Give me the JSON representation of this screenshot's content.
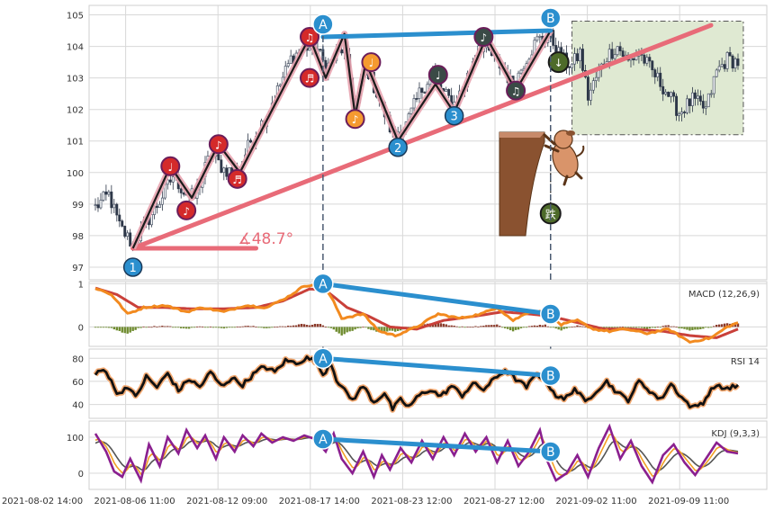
{
  "chart_data": {
    "type": "candlestick",
    "x_ticks": [
      "2021-08-02 14:00",
      "2021-08-06 11:00",
      "2021-08-12 09:00",
      "2021-08-17 14:00",
      "2021-08-23 12:00",
      "2021-08-27 12:00",
      "2021-09-02 11:00",
      "2021-09-09 11:00"
    ],
    "price": {
      "y_ticks": [
        97,
        98,
        99,
        100,
        101,
        102,
        103,
        104,
        105
      ],
      "ylim": [
        96.6,
        105.3
      ],
      "anchors": [
        [
          0,
          98.9
        ],
        [
          5,
          99.3
        ],
        [
          9,
          98.3
        ],
        [
          14,
          97.7
        ],
        [
          19,
          98.4
        ],
        [
          24,
          99.1
        ],
        [
          29,
          99.9
        ],
        [
          33,
          99.4
        ],
        [
          37,
          99.2
        ],
        [
          43,
          100.6
        ],
        [
          48,
          100.1
        ],
        [
          53,
          100.0
        ],
        [
          58,
          101.0
        ],
        [
          63,
          101.7
        ],
        [
          68,
          102.6
        ],
        [
          73,
          103.6
        ],
        [
          78,
          104.0
        ],
        [
          83,
          103.9
        ],
        [
          86,
          103.3
        ],
        [
          89,
          103.6
        ],
        [
          93,
          104.0
        ],
        [
          97,
          102.0
        ],
        [
          101,
          103.4
        ],
        [
          106,
          102.3
        ],
        [
          111,
          101.2
        ],
        [
          116,
          101.5
        ],
        [
          121,
          102.5
        ],
        [
          126,
          103.2
        ],
        [
          130,
          102.5
        ],
        [
          134,
          102.2
        ],
        [
          138,
          102.8
        ],
        [
          143,
          104.1
        ],
        [
          148,
          103.7
        ],
        [
          153,
          103.2
        ],
        [
          156,
          102.7
        ],
        [
          160,
          103.5
        ],
        [
          165,
          104.2
        ],
        [
          170,
          104.3
        ],
        [
          174,
          103.6
        ],
        [
          178,
          103.4
        ],
        [
          181,
          103.8
        ],
        [
          184,
          102.4
        ],
        [
          187,
          103.0
        ],
        [
          191,
          103.7
        ],
        [
          195,
          104.0
        ],
        [
          199,
          103.5
        ],
        [
          203,
          103.8
        ],
        [
          208,
          103.2
        ],
        [
          213,
          102.6
        ],
        [
          218,
          101.9
        ],
        [
          223,
          102.3
        ],
        [
          228,
          102.0
        ],
        [
          232,
          103.2
        ],
        [
          236,
          103.6
        ],
        [
          240,
          103.5
        ]
      ],
      "range_box": {
        "x": [
          178,
          242
        ],
        "y": [
          101.2,
          104.8
        ]
      },
      "trendline": {
        "from": [
          14,
          97.6
        ],
        "to": [
          240,
          105.0
        ]
      },
      "base_line": {
        "from": [
          14,
          97.6
        ],
        "to": [
          60,
          97.6
        ]
      },
      "angle_label": "∡48.7°",
      "pattern_path": [
        [
          14,
          97.6
        ],
        [
          28,
          100.2
        ],
        [
          36,
          99.2
        ],
        [
          46,
          100.9
        ],
        [
          54,
          100.0
        ],
        [
          80,
          104.3
        ],
        [
          86,
          103.0
        ],
        [
          93,
          104.4
        ],
        [
          97,
          101.8
        ],
        [
          101,
          103.5
        ],
        [
          113,
          101.0
        ],
        [
          127,
          102.8
        ],
        [
          134,
          101.9
        ],
        [
          146,
          104.3
        ],
        [
          157,
          102.6
        ],
        [
          170,
          104.5
        ]
      ],
      "points": [
        {
          "label": "1",
          "x": 14,
          "y": 97.0,
          "kind": "num"
        },
        {
          "label": "2",
          "x": 113,
          "y": 100.8,
          "kind": "num"
        },
        {
          "label": "3",
          "x": 134,
          "y": 101.8,
          "kind": "num"
        },
        {
          "label": "A",
          "x": 85,
          "y": 104.7,
          "kind": "AB"
        },
        {
          "label": "B",
          "x": 170,
          "y": 104.9,
          "kind": "AB"
        }
      ],
      "notes": [
        {
          "x": 28,
          "y": 100.2,
          "glyph": "♩",
          "color": "#d42a2a"
        },
        {
          "x": 34,
          "y": 98.8,
          "glyph": "♪",
          "color": "#d42a2a"
        },
        {
          "x": 46,
          "y": 100.9,
          "glyph": "♪",
          "color": "#d42a2a"
        },
        {
          "x": 53,
          "y": 99.8,
          "glyph": "♬",
          "color": "#d42a2a"
        },
        {
          "x": 80,
          "y": 104.3,
          "glyph": "♫",
          "color": "#d42a2a"
        },
        {
          "x": 80,
          "y": 103.0,
          "glyph": "♬",
          "color": "#d42a2a"
        },
        {
          "x": 97,
          "y": 101.7,
          "glyph": "♪",
          "color": "#f59a30"
        },
        {
          "x": 103,
          "y": 103.5,
          "glyph": "♩",
          "color": "#f59a30"
        },
        {
          "x": 128,
          "y": 103.1,
          "glyph": "♩",
          "color": "#3a4a46"
        },
        {
          "x": 145,
          "y": 104.3,
          "glyph": "♪",
          "color": "#3a4a46"
        },
        {
          "x": 157,
          "y": 102.6,
          "glyph": "♫",
          "color": "#3a4a46"
        }
      ],
      "ab_line": {
        "from": [
          85,
          104.3
        ],
        "to": [
          170,
          104.5
        ]
      },
      "badge_top": {
        "x": 173,
        "y": 103.5,
        "text": "↓"
      },
      "badge_bottom": {
        "x": 170,
        "y": 98.7,
        "text": "跌"
      }
    },
    "macd": {
      "label": "MACD (12,26,9)",
      "y_ticks": [
        0,
        1
      ],
      "ylim": [
        -0.45,
        1.05
      ],
      "anchors_macd": [
        [
          0,
          0.9
        ],
        [
          6,
          0.75
        ],
        [
          12,
          0.3
        ],
        [
          18,
          0.45
        ],
        [
          26,
          0.5
        ],
        [
          34,
          0.35
        ],
        [
          40,
          0.45
        ],
        [
          48,
          0.35
        ],
        [
          56,
          0.5
        ],
        [
          64,
          0.45
        ],
        [
          72,
          0.7
        ],
        [
          78,
          0.95
        ],
        [
          84,
          1.0
        ],
        [
          88,
          0.7
        ],
        [
          92,
          0.2
        ],
        [
          100,
          0.3
        ],
        [
          106,
          -0.1
        ],
        [
          112,
          -0.2
        ],
        [
          120,
          0.0
        ],
        [
          128,
          0.3
        ],
        [
          136,
          0.2
        ],
        [
          144,
          0.3
        ],
        [
          150,
          0.45
        ],
        [
          156,
          0.15
        ],
        [
          162,
          0.35
        ],
        [
          168,
          0.35
        ],
        [
          174,
          0.05
        ],
        [
          180,
          0.15
        ],
        [
          186,
          -0.05
        ],
        [
          192,
          -0.1
        ],
        [
          198,
          -0.05
        ],
        [
          206,
          -0.15
        ],
        [
          214,
          -0.05
        ],
        [
          222,
          -0.35
        ],
        [
          230,
          -0.25
        ],
        [
          236,
          0.0
        ],
        [
          240,
          0.1
        ]
      ],
      "anchors_signal": [
        [
          0,
          0.9
        ],
        [
          8,
          0.75
        ],
        [
          16,
          0.45
        ],
        [
          26,
          0.45
        ],
        [
          36,
          0.42
        ],
        [
          48,
          0.42
        ],
        [
          60,
          0.45
        ],
        [
          70,
          0.6
        ],
        [
          80,
          0.88
        ],
        [
          86,
          0.85
        ],
        [
          94,
          0.45
        ],
        [
          102,
          0.25
        ],
        [
          110,
          0.0
        ],
        [
          120,
          -0.05
        ],
        [
          130,
          0.15
        ],
        [
          142,
          0.25
        ],
        [
          152,
          0.35
        ],
        [
          162,
          0.3
        ],
        [
          170,
          0.25
        ],
        [
          180,
          0.1
        ],
        [
          190,
          -0.05
        ],
        [
          200,
          -0.05
        ],
        [
          212,
          -0.1
        ],
        [
          222,
          -0.2
        ],
        [
          232,
          -0.25
        ],
        [
          240,
          -0.05
        ]
      ],
      "ab_line": {
        "from": [
          85,
          1.0
        ],
        "to": [
          170,
          0.3
        ]
      }
    },
    "rsi": {
      "label": "RSI 14",
      "y_ticks": [
        40,
        60,
        80
      ],
      "ylim": [
        28,
        88
      ],
      "anchors": [
        [
          0,
          66
        ],
        [
          3,
          70
        ],
        [
          6,
          62
        ],
        [
          8,
          48
        ],
        [
          12,
          56
        ],
        [
          15,
          46
        ],
        [
          19,
          64
        ],
        [
          23,
          55
        ],
        [
          27,
          67
        ],
        [
          31,
          52
        ],
        [
          35,
          62
        ],
        [
          39,
          55
        ],
        [
          43,
          68
        ],
        [
          47,
          56
        ],
        [
          51,
          63
        ],
        [
          55,
          57
        ],
        [
          59,
          66
        ],
        [
          63,
          73
        ],
        [
          67,
          68
        ],
        [
          71,
          78
        ],
        [
          75,
          76
        ],
        [
          79,
          80
        ],
        [
          82,
          78
        ],
        [
          85,
          66
        ],
        [
          88,
          76
        ],
        [
          90,
          62
        ],
        [
          93,
          52
        ],
        [
          96,
          44
        ],
        [
          100,
          56
        ],
        [
          104,
          42
        ],
        [
          108,
          50
        ],
        [
          111,
          36
        ],
        [
          114,
          44
        ],
        [
          117,
          38
        ],
        [
          121,
          48
        ],
        [
          125,
          53
        ],
        [
          129,
          47
        ],
        [
          133,
          56
        ],
        [
          137,
          48
        ],
        [
          141,
          58
        ],
        [
          145,
          53
        ],
        [
          149,
          62
        ],
        [
          153,
          70
        ],
        [
          157,
          62
        ],
        [
          161,
          55
        ],
        [
          165,
          67
        ],
        [
          169,
          58
        ],
        [
          172,
          48
        ],
        [
          175,
          44
        ],
        [
          179,
          54
        ],
        [
          183,
          42
        ],
        [
          187,
          52
        ],
        [
          191,
          60
        ],
        [
          195,
          50
        ],
        [
          199,
          44
        ],
        [
          203,
          60
        ],
        [
          207,
          52
        ],
        [
          211,
          44
        ],
        [
          215,
          58
        ],
        [
          219,
          46
        ],
        [
          223,
          37
        ],
        [
          227,
          42
        ],
        [
          231,
          56
        ],
        [
          235,
          54
        ],
        [
          240,
          56
        ]
      ],
      "ab_line": {
        "from": [
          85,
          80
        ],
        "to": [
          170,
          65
        ]
      }
    },
    "kdj": {
      "label": "KDJ (9,3,3)",
      "y_ticks": [
        0,
        100
      ],
      "ylim": [
        -45,
        145
      ],
      "anchors_j": [
        [
          0,
          110
        ],
        [
          4,
          60
        ],
        [
          7,
          5
        ],
        [
          10,
          -10
        ],
        [
          13,
          40
        ],
        [
          17,
          -20
        ],
        [
          20,
          80
        ],
        [
          24,
          20
        ],
        [
          27,
          100
        ],
        [
          31,
          55
        ],
        [
          34,
          120
        ],
        [
          38,
          70
        ],
        [
          41,
          105
        ],
        [
          45,
          40
        ],
        [
          48,
          100
        ],
        [
          52,
          60
        ],
        [
          55,
          105
        ],
        [
          59,
          75
        ],
        [
          62,
          110
        ],
        [
          66,
          85
        ],
        [
          70,
          100
        ],
        [
          74,
          90
        ],
        [
          78,
          105
        ],
        [
          82,
          95
        ],
        [
          86,
          60
        ],
        [
          89,
          110
        ],
        [
          92,
          40
        ],
        [
          96,
          0
        ],
        [
          100,
          60
        ],
        [
          104,
          -10
        ],
        [
          107,
          50
        ],
        [
          110,
          10
        ],
        [
          114,
          70
        ],
        [
          118,
          30
        ],
        [
          122,
          90
        ],
        [
          126,
          40
        ],
        [
          130,
          100
        ],
        [
          134,
          50
        ],
        [
          138,
          110
        ],
        [
          142,
          60
        ],
        [
          146,
          100
        ],
        [
          150,
          30
        ],
        [
          154,
          90
        ],
        [
          158,
          20
        ],
        [
          162,
          60
        ],
        [
          166,
          120
        ],
        [
          169,
          30
        ],
        [
          172,
          -20
        ],
        [
          176,
          0
        ],
        [
          180,
          50
        ],
        [
          184,
          -10
        ],
        [
          188,
          70
        ],
        [
          192,
          130
        ],
        [
          196,
          40
        ],
        [
          200,
          90
        ],
        [
          204,
          20
        ],
        [
          208,
          -25
        ],
        [
          212,
          50
        ],
        [
          216,
          80
        ],
        [
          220,
          30
        ],
        [
          224,
          -5
        ],
        [
          228,
          40
        ],
        [
          232,
          85
        ],
        [
          236,
          60
        ],
        [
          240,
          55
        ]
      ],
      "ab_line": {
        "from": [
          85,
          95
        ],
        "to": [
          170,
          60
        ]
      }
    },
    "colors": {
      "up": "#4a5568",
      "down": "#2d3748",
      "trend": "#e86b78",
      "ab": "#2b8fce",
      "macd": "#f28a1f",
      "signal": "#c9403a",
      "rsi": "#111111",
      "rsi_halo": "#f2a870",
      "k": "#f2a024",
      "d": "#555555",
      "j": "#8a1f8f",
      "hist_pos": "#8b3a2a",
      "hist_neg": "#6e8b2e",
      "box_fill": "#dfe9d2",
      "grid": "#d8d8d8"
    },
    "grid": true
  }
}
